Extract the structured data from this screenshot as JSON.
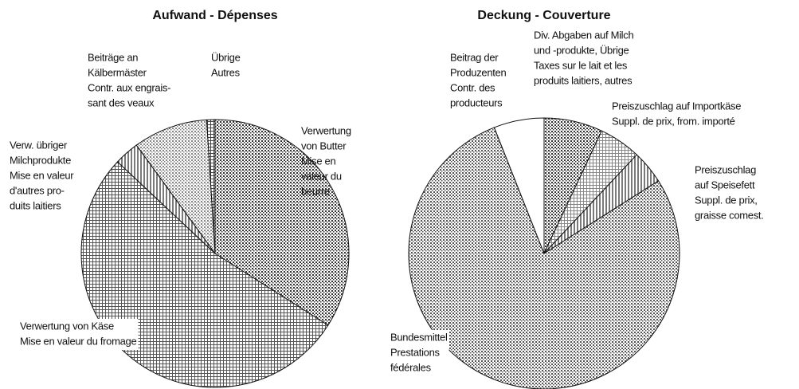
{
  "chart_data": [
    {
      "type": "pie",
      "title": "Aufwand - Dépenses",
      "labels": [
        [
          "Verwertung",
          "von Butter",
          "Mise en",
          "valeur du",
          "beurre"
        ],
        [
          "Verwertung von Käse",
          "Mise en valeur du fromage"
        ],
        [
          "Verw. übriger",
          "Milchprodukte",
          "Mise en valeur",
          "d'autres pro-",
          "duits laitiers"
        ],
        [
          "Beiträge an",
          "Kälbermäster",
          "Contr. aux engrais-",
          "sant des veaux"
        ],
        [
          "Übrige",
          "Autres"
        ]
      ],
      "values": [
        34,
        53,
        3,
        9,
        1
      ],
      "colors": [
        "#333333",
        "#555555",
        "#222222",
        "#888888",
        "#444444"
      ]
    },
    {
      "type": "pie",
      "title": "Deckung - Couverture",
      "labels": [
        [
          "Div. Abgaben auf Milch",
          "und -produkte, Übrige",
          "Taxes sur le lait et les",
          "produits laitiers, autres"
        ],
        [
          "Preiszuschlag auf Importkäse",
          "Suppl. de prix, from. importé"
        ],
        [
          "Preiszuschlag",
          "auf Speisefett",
          "Suppl. de prix,",
          "graisse comest."
        ],
        [
          "Bundesmittel",
          "Prestations",
          "fédérales"
        ],
        [
          "Beitrag der",
          "Produzenten",
          "Contr. des",
          "producteurs"
        ]
      ],
      "values": [
        7,
        5,
        4,
        78,
        6
      ],
      "colors": [
        "#333333",
        "#888888",
        "#222222",
        "#555555",
        "#ffffff"
      ]
    }
  ]
}
